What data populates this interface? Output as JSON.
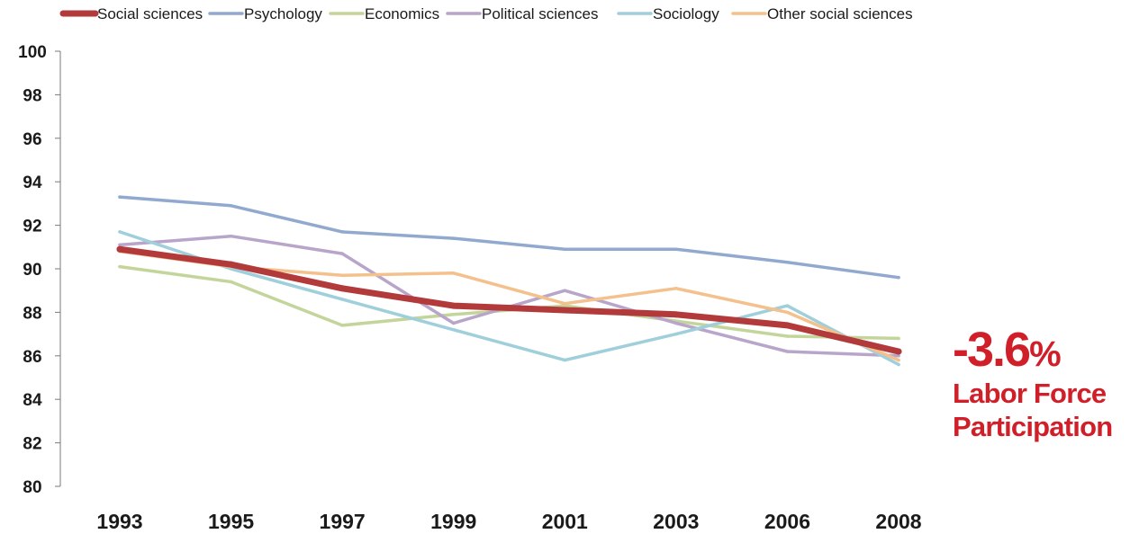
{
  "chart_data": {
    "type": "line",
    "categories": [
      "1993",
      "1995",
      "1997",
      "1999",
      "2001",
      "2003",
      "2006",
      "2008"
    ],
    "ylim": [
      80,
      100
    ],
    "yticks": [
      80,
      82,
      84,
      86,
      88,
      90,
      92,
      94,
      96,
      98,
      100
    ],
    "grid": false,
    "legend_position": "top",
    "series": [
      {
        "name": "Social sciences",
        "color": "#b33a3a",
        "values": [
          90.9,
          90.2,
          89.1,
          88.3,
          88.1,
          87.9,
          87.4,
          86.2
        ]
      },
      {
        "name": "Psychology",
        "color": "#92a9cf",
        "values": [
          93.3,
          92.9,
          91.7,
          91.4,
          90.9,
          90.9,
          90.3,
          89.6
        ]
      },
      {
        "name": "Economics",
        "color": "#c3d59b",
        "values": [
          90.1,
          89.4,
          87.4,
          87.9,
          88.3,
          87.6,
          86.9,
          86.8
        ]
      },
      {
        "name": "Political sciences",
        "color": "#b8a5c9",
        "values": [
          91.1,
          91.5,
          90.7,
          87.5,
          89.0,
          87.5,
          86.2,
          86.0
        ]
      },
      {
        "name": "Sociology",
        "color": "#9fcfdb",
        "values": [
          91.7,
          90.0,
          88.6,
          87.2,
          85.8,
          87.0,
          88.3,
          85.6
        ]
      },
      {
        "name": "Other social sciences",
        "color": "#f4c08c",
        "values": [
          90.8,
          90.1,
          89.7,
          89.8,
          88.4,
          89.1,
          88.0,
          85.8
        ]
      }
    ]
  },
  "annotation": {
    "value": "-3.6",
    "percent_sign": "%",
    "label_line1": "Labor Force",
    "label_line2": "Participation",
    "color": "#d11f2a"
  }
}
